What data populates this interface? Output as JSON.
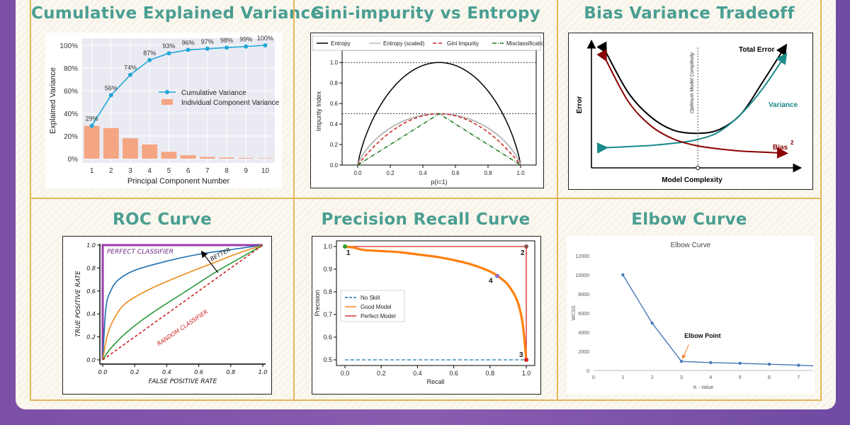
{
  "titles": {
    "pca": "Cumulative Explained Variance",
    "gini": "Gini-impurity vs Entropy",
    "bias": "Bias Variance Tradeoff",
    "roc": "ROC Curve",
    "pr": "Precision Recall Curve",
    "elbow": "Elbow Curve"
  },
  "colors": {
    "title": "#4a9e92",
    "frame": "#e3b85a"
  },
  "chart_data": [
    {
      "id": "pca",
      "type": "bar",
      "xlabel": "Principal Component Number",
      "ylabel": "Explained Variance",
      "categories": [
        "1",
        "2",
        "3",
        "4",
        "5",
        "6",
        "7",
        "8",
        "9",
        "10"
      ],
      "series": [
        {
          "name": "Cumulative Variance",
          "kind": "line",
          "values": [
            29,
            56,
            74,
            87,
            93,
            96,
            97,
            98,
            99,
            100
          ],
          "labels": [
            "29%",
            "56%",
            "74%",
            "87%",
            "93%",
            "96%",
            "97%",
            "98%",
            "99%",
            "100%"
          ]
        },
        {
          "name": "Individual Component Variance",
          "kind": "bar",
          "values": [
            29,
            27,
            18,
            12.5,
            6,
            3,
            1.5,
            1,
            0.6,
            0.4
          ]
        }
      ],
      "ylim": [
        0,
        100
      ],
      "yticks": [
        0,
        20,
        40,
        60,
        80,
        100
      ],
      "ytick_labels": [
        "0%",
        "20%",
        "40%",
        "60%",
        "80%",
        "100%"
      ],
      "legend": "center-right"
    },
    {
      "id": "gini",
      "type": "line",
      "xlabel": "p(i=1)",
      "ylabel": "Impurity Index",
      "xlim": [
        0,
        1
      ],
      "ylim": [
        0,
        1.05
      ],
      "xticks": [
        0,
        0.2,
        0.4,
        0.6,
        0.8,
        1.0
      ],
      "xtick_labels": [
        "0.0",
        "0.2",
        "0.4",
        "0.6",
        "0.8",
        "1.0"
      ],
      "yticks": [
        0,
        0.2,
        0.4,
        0.6,
        0.8,
        1.0
      ],
      "ytick_labels": [
        "0.0",
        "0.2",
        "0.4",
        "0.6",
        "0.8",
        "1.0"
      ],
      "series": [
        {
          "name": "Entropy",
          "color": "#000000"
        },
        {
          "name": "Entropy (scaled)",
          "color": "#bbbbbb"
        },
        {
          "name": "Gini Impurity",
          "color": "#cc2222"
        },
        {
          "name": "Misclassification Error",
          "color": "#1a7a1a"
        }
      ],
      "hlines": [
        0.5,
        1.0
      ],
      "legend": "top"
    },
    {
      "id": "bias",
      "type": "line",
      "xlabel": "Model Complexity",
      "ylabel": "Error",
      "series": [
        {
          "name": "Total Error",
          "color": "#000000",
          "values": [
            95,
            58,
            36,
            24,
            21,
            24,
            38,
            68,
            100
          ]
        },
        {
          "name": "Variance",
          "color": "#1a8a8a",
          "values": [
            8,
            9,
            10,
            12,
            15,
            22,
            38,
            62,
            92
          ]
        },
        {
          "name": "Bias",
          "color": "#8b0000",
          "values": [
            88,
            50,
            28,
            16,
            10,
            7,
            5,
            4,
            3
          ]
        }
      ],
      "annotations": [
        "Optimum Model Complexity"
      ],
      "bias_superscript": "2"
    },
    {
      "id": "roc",
      "type": "line",
      "xlabel": "FALSE POSITIVE RATE",
      "ylabel": "TRUE POSITIVE RATE",
      "xlim": [
        0,
        1
      ],
      "ylim": [
        0,
        1
      ],
      "xticks": [
        0,
        0.2,
        0.4,
        0.6,
        0.8,
        1.0
      ],
      "xtick_labels": [
        "0.0",
        "0.2",
        "0.4",
        "0.6",
        "0.8",
        "1.0"
      ],
      "yticks": [
        0,
        0.2,
        0.4,
        0.6,
        0.8,
        1.0
      ],
      "ytick_labels": [
        "0.0",
        "0.2",
        "0.4",
        "0.6",
        "0.8",
        "1.0"
      ],
      "annotations": {
        "perfect": "PERFECT CLASSIFIER",
        "random": "RANDOM CLASSIFIER",
        "better": "BETTER"
      },
      "series": [
        {
          "name": "perfect",
          "color": "#9a3ca8",
          "x": [
            0,
            0,
            1
          ],
          "y": [
            0,
            1,
            1
          ]
        },
        {
          "name": "blue",
          "color": "#1f6fb0",
          "x": [
            0,
            0.02,
            0.05,
            0.1,
            0.2,
            0.4,
            0.6,
            0.8,
            1.0
          ],
          "y": [
            0,
            0.45,
            0.6,
            0.7,
            0.78,
            0.86,
            0.92,
            0.96,
            1.0
          ]
        },
        {
          "name": "orange",
          "color": "#ee8a1a",
          "x": [
            0,
            0.03,
            0.08,
            0.15,
            0.3,
            0.5,
            0.7,
            0.85,
            1.0
          ],
          "y": [
            0,
            0.22,
            0.38,
            0.5,
            0.62,
            0.74,
            0.85,
            0.93,
            1.0
          ]
        },
        {
          "name": "green",
          "color": "#2a9a3a",
          "x": [
            0,
            0.05,
            0.15,
            0.3,
            0.5,
            0.7,
            0.85,
            1.0
          ],
          "y": [
            0,
            0.1,
            0.24,
            0.4,
            0.58,
            0.76,
            0.88,
            1.0
          ]
        },
        {
          "name": "random",
          "color": "#cc2222",
          "x": [
            0,
            1
          ],
          "y": [
            0,
            1
          ]
        }
      ]
    },
    {
      "id": "pr",
      "type": "line",
      "xlabel": "Recall",
      "ylabel": "Precision",
      "xlim": [
        0,
        1
      ],
      "ylim": [
        0.5,
        1.0
      ],
      "xticks": [
        0,
        0.2,
        0.4,
        0.6,
        0.8,
        1.0
      ],
      "xtick_labels": [
        "0.0",
        "0.2",
        "0.4",
        "0.6",
        "0.8",
        "1.0"
      ],
      "yticks": [
        0.5,
        0.6,
        0.7,
        0.8,
        0.9,
        1.0
      ],
      "ytick_labels": [
        "0.5",
        "0.6",
        "0.7",
        "0.8",
        "0.9",
        "1.0"
      ],
      "series": [
        {
          "name": "No Skill",
          "color": "#1f77b4",
          "x": [
            0,
            1
          ],
          "y": [
            0.5,
            0.5
          ]
        },
        {
          "name": "Good Model",
          "color": "#ff7f0e",
          "x": [
            0,
            0.05,
            0.1,
            0.2,
            0.3,
            0.4,
            0.5,
            0.6,
            0.7,
            0.8,
            0.85,
            0.9,
            0.95,
            0.98,
            1.0
          ],
          "y": [
            1.0,
            0.995,
            0.985,
            0.98,
            0.975,
            0.965,
            0.955,
            0.94,
            0.92,
            0.89,
            0.865,
            0.83,
            0.76,
            0.66,
            0.5
          ]
        },
        {
          "name": "Perfect Model",
          "color": "#d62728",
          "x": [
            0,
            1,
            1
          ],
          "y": [
            1,
            1,
            0.5
          ]
        }
      ],
      "points": [
        {
          "label": "1",
          "x": 0.0,
          "y": 1.0,
          "color": "#2ca02c"
        },
        {
          "label": "2",
          "x": 1.0,
          "y": 1.0,
          "color": "#8c564b"
        },
        {
          "label": "3",
          "x": 1.0,
          "y": 0.5,
          "color": "#d62728"
        },
        {
          "label": "4",
          "x": 0.84,
          "y": 0.87,
          "color": "#9467bd"
        }
      ],
      "legend": "center-left"
    },
    {
      "id": "elbow",
      "type": "line",
      "title": "Elbow Curve",
      "xlabel": "K - Value",
      "ylabel": "WCSS",
      "x": [
        1,
        2,
        3,
        4,
        5,
        6,
        7,
        7.5
      ],
      "values": [
        10000,
        4950,
        950,
        820,
        750,
        650,
        550,
        480
      ],
      "xlim": [
        0,
        7.5
      ],
      "ylim": [
        0,
        12000
      ],
      "xticks": [
        0,
        1,
        2,
        3,
        4,
        5,
        6,
        7
      ],
      "xtick_labels": [
        "0",
        "1",
        "2",
        "3",
        "4",
        "5",
        "6",
        "7"
      ],
      "yticks": [
        0,
        2000,
        4000,
        6000,
        8000,
        10000,
        12000
      ],
      "ytick_labels": [
        "0",
        "2000",
        "4000",
        "6000",
        "8000",
        "10000",
        "12000"
      ],
      "annotation": "Elbow Point"
    }
  ]
}
